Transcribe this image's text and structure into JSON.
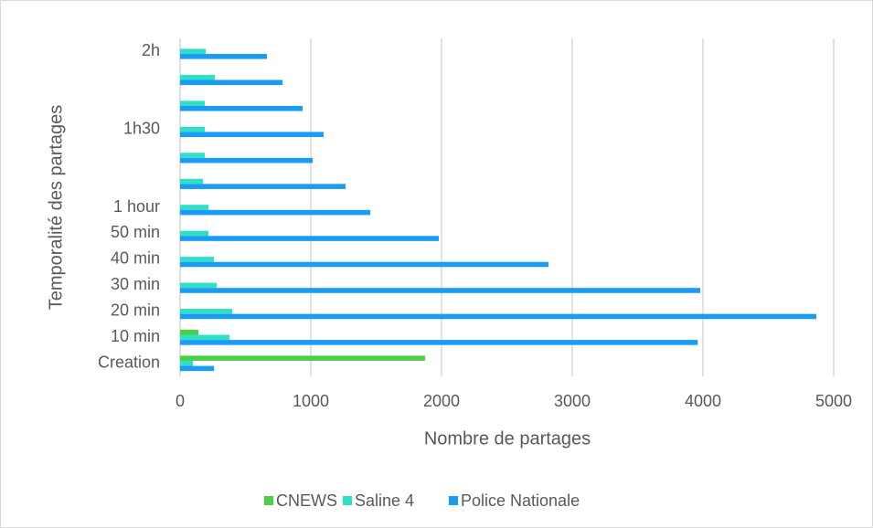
{
  "chart_data": {
    "type": "hbar",
    "x_label": "Nombre de partages",
    "y_label": "Temporalité des partages",
    "categories": [
      "Creation",
      "10 min",
      "20 min",
      "30 min",
      "40 min",
      "50 min",
      "1 hour",
      null,
      null,
      "1h30",
      null,
      null,
      "2h"
    ],
    "series": [
      {
        "name": "CNEWS",
        "color": "#4ccf45",
        "values": [
          1874,
          140,
          0,
          0,
          0,
          0,
          0,
          0,
          0,
          0,
          0,
          0,
          0
        ]
      },
      {
        "name": "Saline 4",
        "color": "#2fe0c6",
        "values": [
          98,
          378,
          399,
          280,
          259,
          217,
          217,
          175,
          189,
          189,
          189,
          266,
          196
        ]
      },
      {
        "name": "Police Nationale",
        "color": "#1b9cf4",
        "values": [
          260,
          3960,
          4867,
          3979,
          2818,
          1979,
          1455,
          1266,
          1014,
          1098,
          937,
          783,
          664
        ]
      }
    ],
    "xlim": [
      0,
      5000
    ],
    "xticks": [
      0,
      1000,
      2000,
      3000,
      4000,
      5000
    ],
    "grid": true,
    "legend": "bottom"
  }
}
